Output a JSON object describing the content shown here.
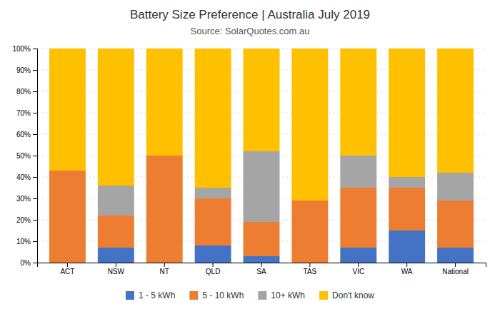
{
  "chart_data": {
    "type": "bar",
    "stacked": true,
    "title": "Battery Size Preference  |  Australia July 2019",
    "subtitle": "Source: SolarQuotes.com.au",
    "categories": [
      "ACT",
      "NSW",
      "NT",
      "QLD",
      "SA",
      "TAS",
      "VIC",
      "WA",
      "National"
    ],
    "series": [
      {
        "name": "1 - 5 kWh",
        "color": "#4472C4",
        "values": [
          0,
          7,
          0,
          8,
          3,
          0,
          7,
          15,
          7
        ]
      },
      {
        "name": "5 - 10 kWh",
        "color": "#ED7D31",
        "values": [
          43,
          15,
          50,
          22,
          16,
          29,
          28,
          20,
          22
        ]
      },
      {
        "name": "10+ kWh",
        "color": "#A5A5A5",
        "values": [
          0,
          14,
          0,
          5,
          33,
          0,
          15,
          5,
          13
        ]
      },
      {
        "name": "Don't know",
        "color": "#FFC000",
        "values": [
          57,
          64,
          50,
          65,
          48,
          71,
          50,
          60,
          58
        ]
      }
    ],
    "ylim": [
      0,
      100
    ],
    "yticks": [
      {
        "value": 0,
        "label": "0%"
      },
      {
        "value": 10,
        "label": "10%"
      },
      {
        "value": 20,
        "label": "20%"
      },
      {
        "value": 30,
        "label": "30%"
      },
      {
        "value": 40,
        "label": "40%"
      },
      {
        "value": 50,
        "label": "50%"
      },
      {
        "value": 60,
        "label": "60%"
      },
      {
        "value": 70,
        "label": "70%"
      },
      {
        "value": 80,
        "label": "80%"
      },
      {
        "value": 90,
        "label": "90%"
      },
      {
        "value": 100,
        "label": "100%"
      }
    ],
    "grid": true,
    "legend": "bottom"
  }
}
